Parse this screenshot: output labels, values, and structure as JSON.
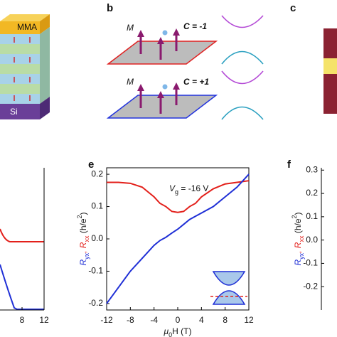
{
  "panel_labels": [
    "b",
    "c",
    "e",
    "f"
  ],
  "panel_a": {
    "top_layer": "MMA",
    "bottom_layer": "Si"
  },
  "panel_b": {
    "top": {
      "moment": "M",
      "chern": "C = -1"
    },
    "bottom": {
      "moment": "M",
      "chern": "C = +1"
    }
  },
  "chart_data": [
    {
      "type": "line",
      "xlim": [
        4,
        12
      ],
      "xticks": [
        8,
        12
      ]
    },
    {
      "type": "line",
      "annotation": [
        "V",
        "g",
        " = -16 V"
      ],
      "x_label": [
        "μ",
        "0",
        "H (T)"
      ],
      "y_label": [
        "R",
        "yx",
        ", R",
        "xx",
        " (h/e",
        "2",
        ")"
      ],
      "xlim": [
        -12,
        12
      ],
      "xticks": [
        -12,
        -8,
        -4,
        0,
        4,
        8,
        12
      ],
      "ylim": [
        -0.22,
        0.22
      ],
      "yticks": [
        -0.2,
        -0.1,
        {
          "value": 0,
          "label": "0.0"
        },
        0.1,
        0.2
      ],
      "x": [
        -12,
        -10,
        -8,
        -6,
        -4,
        -3,
        -2,
        -1,
        0,
        1,
        2,
        3,
        4,
        6,
        8,
        10,
        12
      ],
      "series": [
        {
          "color": "#e3201b",
          "values": [
            0.175,
            0.175,
            0.172,
            0.16,
            0.13,
            0.11,
            0.1,
            0.085,
            0.082,
            0.085,
            0.1,
            0.11,
            0.13,
            0.155,
            0.17,
            0.175,
            0.18
          ]
        },
        {
          "color": "#1f2fd6",
          "values": [
            -0.2,
            -0.15,
            -0.1,
            -0.06,
            -0.02,
            -0.005,
            0.005,
            0.018,
            0.03,
            0.045,
            0.06,
            0.07,
            0.08,
            0.1,
            0.13,
            0.16,
            0.2
          ]
        }
      ]
    },
    {
      "type": "line",
      "y_label": [
        "R",
        "yx",
        ", R",
        "xx",
        " (h/e",
        "2",
        ")"
      ],
      "ylim": [
        -0.3,
        0.31
      ],
      "yticks": [
        0.3,
        0.2,
        0.1,
        {
          "value": 0,
          "label": "0.0"
        },
        -0.1,
        -0.2
      ]
    }
  ]
}
